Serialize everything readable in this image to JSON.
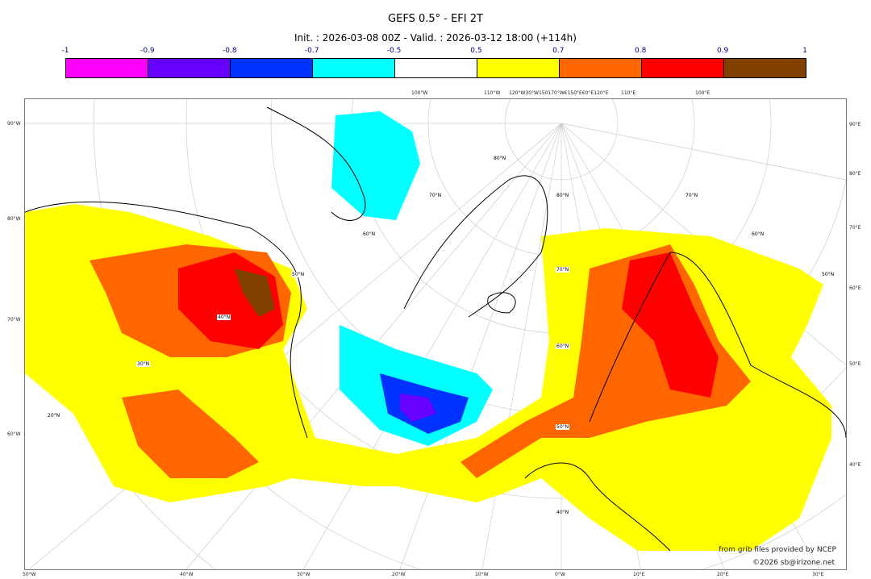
{
  "title": "GEFS 0.5° - EFI 2T",
  "subtitle": "Init. : 2026-03-08 00Z - Valid. : 2026-03-12 18:00 (+114h)",
  "colorbar": {
    "labels": [
      "-1",
      "-0.9",
      "-0.8",
      "-0.7",
      "-0.5",
      "0.5",
      "0.7",
      "0.8",
      "0.9",
      "1"
    ],
    "colors": [
      "#ff00ff",
      "#6600ff",
      "#0033ff",
      "#00ffff",
      "#ffffff",
      "#ffff00",
      "#ff6600",
      "#ff0000",
      "#804000"
    ]
  },
  "axes": {
    "left": [
      "90°W",
      "80°W",
      "70°W",
      "60°W"
    ],
    "right": [
      "90°E",
      "80°E",
      "70°E",
      "60°E",
      "50°E",
      "40°E"
    ],
    "bottom": [
      "50°W",
      "40°W",
      "30°W",
      "20°W",
      "10°W",
      "0°W",
      "10°E",
      "20°E",
      "30°E"
    ],
    "top": [
      "100°W",
      "110°W",
      "120°W30°W150170°W€150°E€0°E120°E",
      "110°E",
      "100°E"
    ]
  },
  "lat_labels": [
    "80°N",
    "80°N",
    "70°N",
    "70°N",
    "70°N",
    "60°N",
    "60°N",
    "60°N",
    "50°N",
    "50°N",
    "50°N",
    "40°N",
    "40°N",
    "30°N",
    "20°N"
  ],
  "credits": {
    "line1": "from grib files provided by NCEP",
    "line2": "©2026 sb@irizone.net"
  }
}
